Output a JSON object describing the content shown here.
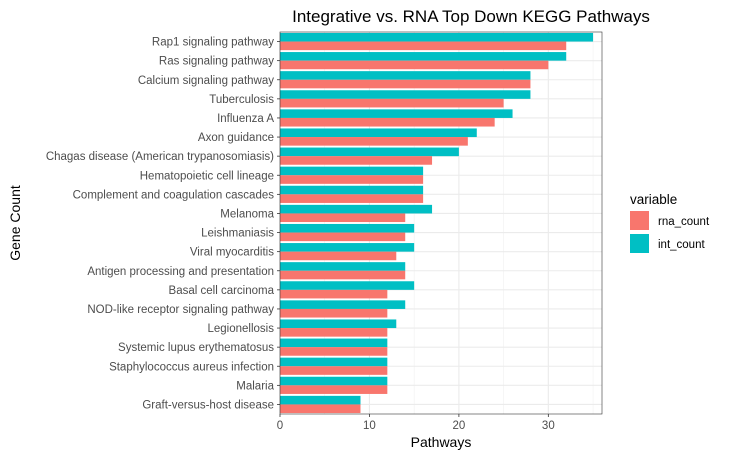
{
  "chart_data": {
    "type": "bar",
    "orientation": "horizontal",
    "title": "Integrative vs. RNA Top Down KEGG Pathways",
    "xlabel": "Pathways",
    "ylabel": "Gene Count",
    "xlim": [
      0,
      36
    ],
    "x_ticks": [
      0,
      10,
      20,
      30
    ],
    "grid": true,
    "legend_position": "right",
    "legend_title": "variable",
    "categories": [
      "Rap1 signaling pathway",
      "Ras signaling pathway",
      "Calcium signaling pathway",
      "Tuberculosis",
      "Influenza A",
      "Axon guidance",
      "Chagas disease (American trypanosomiasis)",
      "Hematopoietic cell lineage",
      "Complement and coagulation cascades",
      "Melanoma",
      "Leishmaniasis",
      "Viral myocarditis",
      "Antigen processing and presentation",
      "Basal cell carcinoma",
      "NOD-like receptor signaling pathway",
      "Legionellosis",
      "Systemic lupus erythematosus",
      "Staphylococcus aureus infection",
      "Malaria",
      "Graft-versus-host disease"
    ],
    "series": [
      {
        "name": "rna_count",
        "color": "#F8766D",
        "values": [
          32,
          30,
          28,
          25,
          24,
          21,
          17,
          16,
          16,
          14,
          14,
          13,
          14,
          12,
          12,
          12,
          12,
          12,
          12,
          9
        ]
      },
      {
        "name": "int_count",
        "color": "#00BFC4",
        "values": [
          35,
          32,
          28,
          28,
          26,
          22,
          20,
          16,
          16,
          17,
          15,
          15,
          14,
          15,
          14,
          13,
          12,
          12,
          12,
          9
        ]
      }
    ]
  }
}
